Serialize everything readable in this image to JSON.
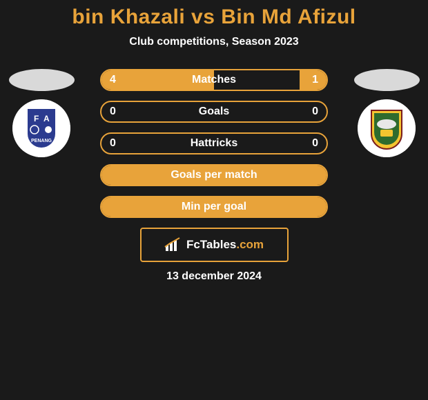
{
  "title": "bin Khazali vs Bin Md Afizul",
  "subtitle": "Club competitions, Season 2023",
  "colors": {
    "accent": "#e8a33a",
    "background": "#1a1a1a",
    "text": "#ffffff",
    "oval": "#d9d9d9"
  },
  "left_crest": {
    "name": "penang-fa-crest",
    "bg": "#2b3b8f",
    "accent": "#ffffff"
  },
  "right_crest": {
    "name": "kedah-crest",
    "bg": "#ffffff",
    "border": "#f4c430",
    "inner": "#2e6b2e"
  },
  "bars": [
    {
      "key": "matches",
      "label": "Matches",
      "left": "4",
      "right": "1",
      "left_fill_pct": 50,
      "right_fill_pct": 12
    },
    {
      "key": "goals",
      "label": "Goals",
      "left": "0",
      "right": "0",
      "left_fill_pct": 0,
      "right_fill_pct": 0
    },
    {
      "key": "hattricks",
      "label": "Hattricks",
      "left": "0",
      "right": "0",
      "left_fill_pct": 0,
      "right_fill_pct": 0
    },
    {
      "key": "gpm",
      "label": "Goals per match",
      "left": "",
      "right": "",
      "left_fill_pct": 100,
      "right_fill_pct": 0
    },
    {
      "key": "mpg",
      "label": "Min per goal",
      "left": "",
      "right": "",
      "left_fill_pct": 100,
      "right_fill_pct": 0
    }
  ],
  "site": {
    "brand": "FcTables",
    "tld": ".com"
  },
  "date": "13 december 2024"
}
